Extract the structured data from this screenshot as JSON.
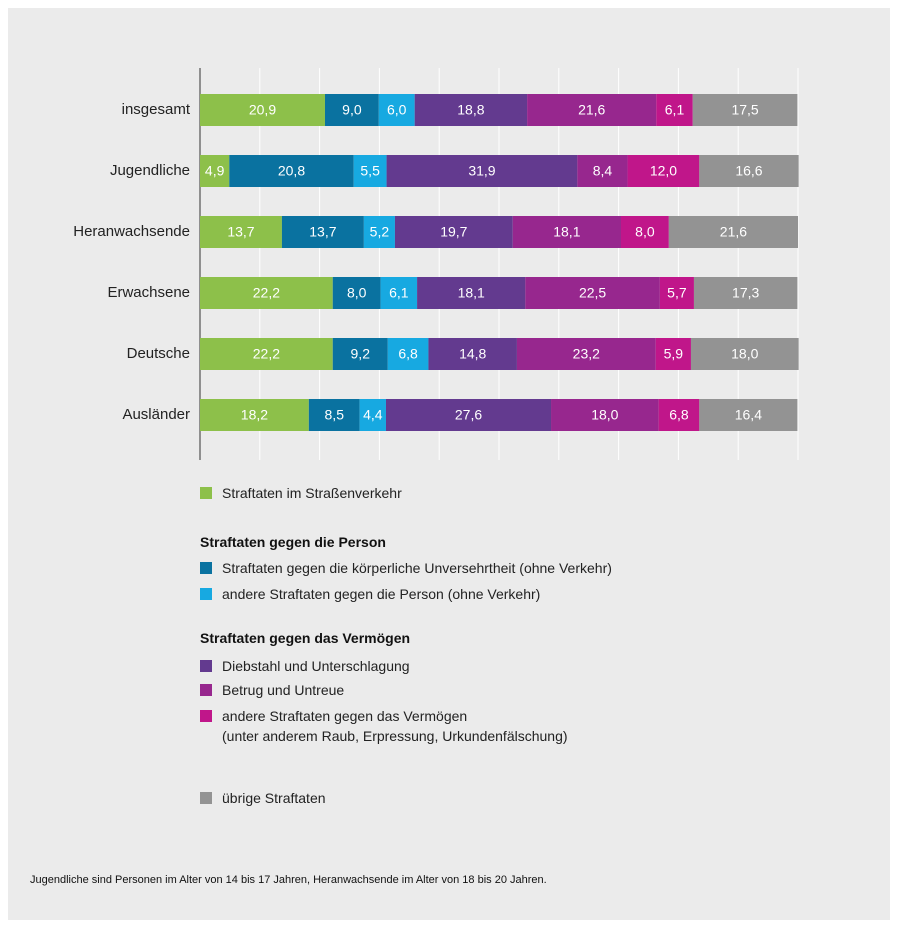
{
  "chart_data": {
    "type": "stacked-bar-horizontal",
    "categories": [
      "insgesamt",
      "Jugendliche",
      "Heranwachsende",
      "Erwachsene",
      "Deutsche",
      "Ausländer"
    ],
    "xlim": [
      0,
      100
    ],
    "xticks": [
      0,
      10,
      20,
      30,
      40,
      50,
      60,
      70,
      80,
      90,
      100
    ],
    "grid": true,
    "series": [
      {
        "name": "Straftaten im Straßenverkehr",
        "color": "#8dc04a",
        "values": [
          20.9,
          4.9,
          13.7,
          22.2,
          22.2,
          18.2
        ],
        "value_labels": [
          "20,9",
          "4,9",
          "13,7",
          "22,2",
          "22,2",
          "18,2"
        ]
      },
      {
        "name": "Straftaten gegen die körperliche Unversehrtheit (ohne Verkehr)",
        "color": "#0a72a0",
        "values": [
          9.0,
          20.8,
          13.7,
          8.0,
          9.2,
          8.5
        ],
        "value_labels": [
          "9,0",
          "20,8",
          "13,7",
          "8,0",
          "9,2",
          "8,5"
        ]
      },
      {
        "name": "andere Straftaten gegen die Person (ohne Verkehr)",
        "color": "#17a9e1",
        "values": [
          6.0,
          5.5,
          5.2,
          6.1,
          6.8,
          4.4
        ],
        "value_labels": [
          "6,0",
          "5,5",
          "5,2",
          "6,1",
          "6,8",
          "4,4"
        ]
      },
      {
        "name": "Diebstahl und Unterschlagung",
        "color": "#633a8f",
        "values": [
          18.8,
          31.9,
          19.7,
          18.1,
          14.8,
          27.6
        ],
        "value_labels": [
          "18,8",
          "31,9",
          "19,7",
          "18,1",
          "14,8",
          "27,6"
        ]
      },
      {
        "name": "Betrug und Untreue",
        "color": "#97278e",
        "values": [
          21.6,
          8.4,
          18.1,
          22.5,
          23.2,
          18.0
        ],
        "value_labels": [
          "21,6",
          "8,4",
          "18,1",
          "22,5",
          "23,2",
          "18,0"
        ]
      },
      {
        "name": "andere Straftaten gegen das Vermögen\n(unter anderem Raub, Erpressung, Urkundenfälschung)",
        "color": "#c0168a",
        "values": [
          6.1,
          12.0,
          8.0,
          5.7,
          5.9,
          6.8
        ],
        "value_labels": [
          "6,1",
          "12,0",
          "8,0",
          "5,7",
          "5,9",
          "6,8"
        ]
      },
      {
        "name": "übrige Straftaten",
        "color": "#939393",
        "values": [
          17.5,
          16.6,
          21.6,
          17.3,
          18.0,
          16.4
        ],
        "value_labels": [
          "17,5",
          "16,6",
          "21,6",
          "17,3",
          "18,0",
          "16,4"
        ]
      }
    ],
    "legend_headings": [
      "Straftaten gegen die Person",
      "Straftaten gegen das Vermögen"
    ],
    "note": "Jugendliche sind Personen im Alter von 14 bis 17 Jahren, Heranwachsende im Alter von 18 bis 20 Jahren."
  }
}
